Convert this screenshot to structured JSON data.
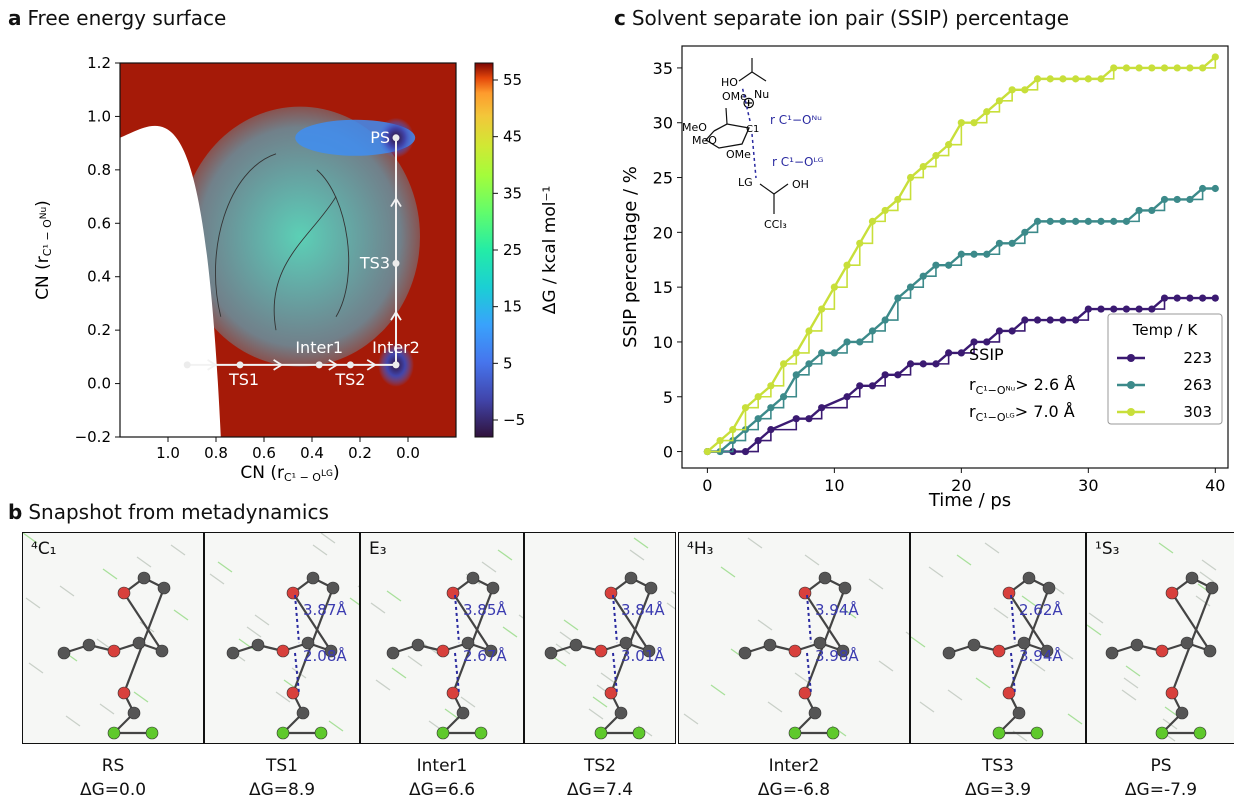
{
  "panels": {
    "a": {
      "letter": "a",
      "title": "Free energy surface"
    },
    "b": {
      "letter": "b",
      "title": "Snapshot from metadynamics"
    },
    "c": {
      "letter": "c",
      "title": "Solvent separate ion pair (SSIP) percentage"
    }
  },
  "chart_data": [
    {
      "type": "heatmap",
      "panel": "a",
      "title": "Free energy surface",
      "xlabel": "CN (r_C1-O_LG)",
      "ylabel": "CN (r_C1-O_Nu)",
      "x_inverted": true,
      "y_inverted": true,
      "xlim": [
        1.2,
        -0.2
      ],
      "ylim": [
        1.2,
        -0.2
      ],
      "xticks": [
        "1.0",
        "0.8",
        "0.6",
        "0.4",
        "0.2",
        "0.0"
      ],
      "yticks": [
        "−0.2",
        "0.0",
        "0.2",
        "0.4",
        "0.6",
        "0.8",
        "1.0",
        "1.2"
      ],
      "colorbar": {
        "label": "ΔG / kcal mol⁻¹",
        "min": -8,
        "max": 58,
        "ticks": [
          "55",
          "45",
          "35",
          "25",
          "15",
          "5",
          "−5"
        ],
        "colormap": "turbo"
      },
      "points": [
        {
          "name": "RS",
          "x": 0.92,
          "y": 0.07
        },
        {
          "name": "TS1",
          "x": 0.7,
          "y": 0.07
        },
        {
          "name": "Inter1",
          "x": 0.37,
          "y": 0.07
        },
        {
          "name": "TS2",
          "x": 0.24,
          "y": 0.07
        },
        {
          "name": "Inter2",
          "x": 0.05,
          "y": 0.07
        },
        {
          "name": "TS3",
          "x": 0.05,
          "y": 0.45
        },
        {
          "name": "PS",
          "x": 0.05,
          "y": 0.92
        }
      ],
      "path": "RS → TS1 → Inter1 → TS2 → Inter2 → TS3 → PS"
    },
    {
      "type": "line",
      "panel": "c",
      "title": "Solvent separate ion pair (SSIP) percentage",
      "xlabel": "Time / ps",
      "ylabel": "SSIP percentage / %",
      "xlim": [
        -2,
        41
      ],
      "ylim": [
        -1.5,
        37
      ],
      "xticks": [
        "0",
        "10",
        "20",
        "30",
        "40"
      ],
      "yticks": [
        "0",
        "5",
        "10",
        "15",
        "20",
        "25",
        "30",
        "35"
      ],
      "legend": {
        "title": "Temp / K",
        "position": "bottom-right"
      },
      "series": [
        {
          "name": "223",
          "color": "#3b1a72",
          "x": [
            0,
            2,
            3,
            4,
            5,
            7,
            8,
            9,
            11,
            12,
            13,
            14,
            15,
            16,
            17,
            18,
            19,
            20,
            21,
            22,
            23,
            24,
            25,
            26,
            27,
            28,
            29,
            30,
            31,
            32,
            33,
            34,
            35,
            36,
            37,
            38,
            39,
            40
          ],
          "y": [
            0,
            0,
            0,
            1,
            2,
            3,
            3,
            4,
            5,
            6,
            6,
            7,
            7,
            8,
            8,
            8,
            9,
            9,
            10,
            10,
            11,
            11,
            12,
            12,
            12,
            12,
            12,
            13,
            13,
            13,
            13,
            13,
            13,
            14,
            14,
            14,
            14,
            14
          ]
        },
        {
          "name": "263",
          "color": "#3c8a8a",
          "x": [
            0,
            1,
            2,
            3,
            4,
            5,
            6,
            7,
            8,
            9,
            10,
            11,
            12,
            13,
            14,
            15,
            16,
            17,
            18,
            19,
            20,
            21,
            22,
            23,
            24,
            25,
            26,
            27,
            28,
            29,
            30,
            31,
            32,
            33,
            34,
            35,
            36,
            37,
            38,
            39,
            40
          ],
          "y": [
            0,
            0,
            1,
            2,
            3,
            4,
            5,
            7,
            8,
            9,
            9,
            10,
            10,
            11,
            12,
            14,
            15,
            16,
            17,
            17,
            18,
            18,
            18,
            19,
            19,
            20,
            21,
            21,
            21,
            21,
            21,
            21,
            21,
            21,
            22,
            22,
            23,
            23,
            23,
            24,
            24
          ]
        },
        {
          "name": "303",
          "color": "#c8df3a",
          "x": [
            0,
            1,
            2,
            3,
            4,
            5,
            6,
            7,
            8,
            9,
            10,
            11,
            12,
            13,
            14,
            15,
            16,
            17,
            18,
            19,
            20,
            21,
            22,
            23,
            24,
            25,
            26,
            27,
            28,
            29,
            30,
            31,
            32,
            33,
            34,
            35,
            36,
            37,
            38,
            39,
            40
          ],
          "y": [
            0,
            1,
            2,
            4,
            5,
            6,
            8,
            9,
            11,
            13,
            15,
            17,
            19,
            21,
            22,
            23,
            25,
            26,
            27,
            28,
            30,
            30,
            31,
            32,
            33,
            33,
            34,
            34,
            34,
            34,
            34,
            34,
            35,
            35,
            35,
            35,
            35,
            35,
            35,
            35,
            36
          ]
        }
      ],
      "annotation": {
        "title": "SSIP",
        "line1_label": "r",
        "line1_sub": "C¹−Oᴺᵘ",
        "line1_value": "> 2.6 Å",
        "line2_label": "r",
        "line2_sub": "C¹−Oᴸᴳ",
        "line2_value": "> 7.0 Å"
      }
    }
  ],
  "molecule": {
    "nu": "Nu",
    "lg": "LG",
    "ome": "OMe",
    "meo1": "MeO",
    "meo2": "MeO",
    "ome2": "OMe",
    "c1": "C1",
    "oh": "OH",
    "ho": "HO",
    "ccl3": "CCl₃",
    "charge": "⊕",
    "r_nu": "r C¹−Oᴺᵘ",
    "r_lg": "r C¹−Oᴸᴳ"
  },
  "snapshots": [
    {
      "name": "RS",
      "dg": "ΔG=0.0",
      "conf": "⁴C₁",
      "distances": []
    },
    {
      "name": "TS1",
      "dg": "ΔG=8.9",
      "conf": "",
      "distances": [
        "3.87Å",
        "2.08Å"
      ]
    },
    {
      "name": "Inter1",
      "dg": "ΔG=6.6",
      "conf": "E₃",
      "distances": [
        "3.85Å",
        "2.67Å"
      ]
    },
    {
      "name": "TS2",
      "dg": "ΔG=7.4",
      "conf": "",
      "distances": [
        "3.84Å",
        "3.01Å"
      ]
    },
    {
      "name": "Inter2",
      "dg": "ΔG=-6.8",
      "conf": "⁴H₃",
      "distances": [
        "3.94Å",
        "3.98Å"
      ]
    },
    {
      "name": "TS3",
      "dg": "ΔG=3.9",
      "conf": "",
      "distances": [
        "2.62Å",
        "3.94Å"
      ]
    },
    {
      "name": "PS",
      "dg": "ΔG=-7.9",
      "conf": "¹S₃",
      "distances": []
    }
  ]
}
